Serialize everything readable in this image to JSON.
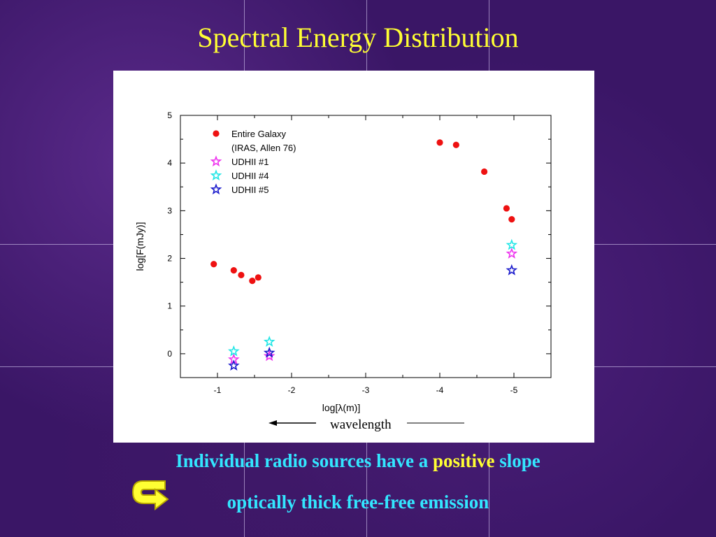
{
  "slide": {
    "title": "Spectral Energy Distribution",
    "caption_line1_a": "Individual radio sources have a ",
    "caption_line1_highlight": "positive",
    "caption_line1_b": " slope",
    "caption_line2": "optically thick free-free emission",
    "wavelength_label": "wavelength",
    "arrow_icon": "curved-arrow-icon",
    "colors": {
      "title": "#ffff33",
      "caption": "#33e6ff",
      "highlight": "#ffff33"
    }
  },
  "chart_data": {
    "type": "scatter",
    "xlabel": "log[λ(m)]",
    "ylabel": "log[F(mJy)]",
    "xlim": [
      -0.5,
      -5.5
    ],
    "ylim": [
      -0.5,
      5
    ],
    "x_ticks": [
      -1,
      -2,
      -3,
      -4,
      -5
    ],
    "y_ticks": [
      0,
      1,
      2,
      3,
      4,
      5
    ],
    "legend_placement": "top-left",
    "series": [
      {
        "name": "Entire Galaxy",
        "name_line2": "(IRAS, Allen 76)",
        "marker": "circle",
        "color": "#ee1111",
        "points": [
          [
            -0.95,
            1.88
          ],
          [
            -1.22,
            1.75
          ],
          [
            -1.32,
            1.65
          ],
          [
            -1.47,
            1.53
          ],
          [
            -1.55,
            1.6
          ],
          [
            -4.0,
            4.43
          ],
          [
            -4.22,
            4.38
          ],
          [
            -4.6,
            3.82
          ],
          [
            -4.9,
            3.05
          ],
          [
            -4.97,
            2.82
          ]
        ]
      },
      {
        "name": "UDHII #1",
        "marker": "star",
        "color": "#ee33ee",
        "points": [
          [
            -1.22,
            -0.12
          ],
          [
            -1.7,
            -0.05
          ],
          [
            -4.97,
            2.1
          ]
        ]
      },
      {
        "name": "UDHII #4",
        "marker": "star",
        "color": "#22e6e6",
        "points": [
          [
            -1.22,
            0.05
          ],
          [
            -1.7,
            0.25
          ],
          [
            -4.97,
            2.28
          ]
        ]
      },
      {
        "name": "UDHII #5",
        "marker": "star",
        "color": "#1a1acc",
        "points": [
          [
            -1.22,
            -0.25
          ],
          [
            -1.7,
            0.02
          ],
          [
            -4.97,
            1.75
          ]
        ]
      }
    ]
  }
}
